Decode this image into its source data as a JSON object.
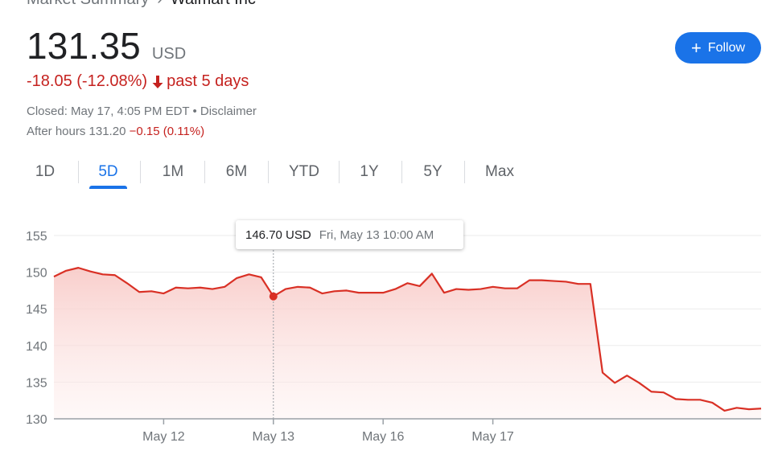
{
  "header": {
    "crumb": "Market Summary",
    "separator": "›",
    "company": "Walmart Inc"
  },
  "quote": {
    "price": "131.35",
    "currency": "USD",
    "change": "-18.05 (-12.08%)",
    "period": "past 5 days",
    "closed": "Closed: May 17, 4:05 PM EDT • Disclaimer",
    "after_hours_label": "After hours 131.20 ",
    "after_hours_change": "−0.15 (0.11%)"
  },
  "follow": {
    "label": "Follow",
    "icon": "plus-icon"
  },
  "tabs": [
    {
      "label": "1D",
      "active": false
    },
    {
      "label": "5D",
      "active": true
    },
    {
      "label": "1M",
      "active": false
    },
    {
      "label": "6M",
      "active": false
    },
    {
      "label": "YTD",
      "active": false
    },
    {
      "label": "1Y",
      "active": false
    },
    {
      "label": "5Y",
      "active": false
    },
    {
      "label": "Max",
      "active": false
    }
  ],
  "tooltip": {
    "value": "146.70 USD",
    "date": "Fri, May 13 10:00 AM"
  },
  "colors": {
    "accent": "#1a73e8",
    "negative": "#c5221f",
    "line": "#d93025"
  },
  "chart_data": {
    "type": "line",
    "title": "",
    "xlabel": "",
    "ylabel": "",
    "ylim": [
      130,
      155
    ],
    "yticks": [
      130,
      135,
      140,
      145,
      150,
      155
    ],
    "x_tick_labels": [
      "May 12",
      "May 13",
      "May 16",
      "May 17"
    ],
    "x_tick_positions": [
      9,
      18,
      27,
      36
    ],
    "grid": true,
    "highlight_index": 18,
    "series": [
      {
        "values": [
          149.4,
          150.2,
          150.6,
          150.1,
          149.7,
          149.6,
          148.5,
          147.3,
          147.4,
          147.1,
          147.9,
          147.8,
          147.9,
          147.7,
          148.0,
          149.2,
          149.7,
          149.3,
          146.7,
          147.7,
          148.0,
          147.9,
          147.1,
          147.4,
          147.5,
          147.2,
          147.2,
          147.2,
          147.7,
          148.5,
          148.1,
          149.8,
          147.2,
          147.7,
          147.6,
          147.7,
          148.0,
          147.8,
          147.8,
          148.9,
          148.9,
          148.8,
          148.7,
          148.4,
          148.4,
          136.3,
          134.9,
          135.9,
          134.9,
          133.7,
          133.6,
          132.7,
          132.6,
          132.6,
          132.2,
          131.1,
          131.5,
          131.3,
          131.4
        ]
      }
    ]
  }
}
